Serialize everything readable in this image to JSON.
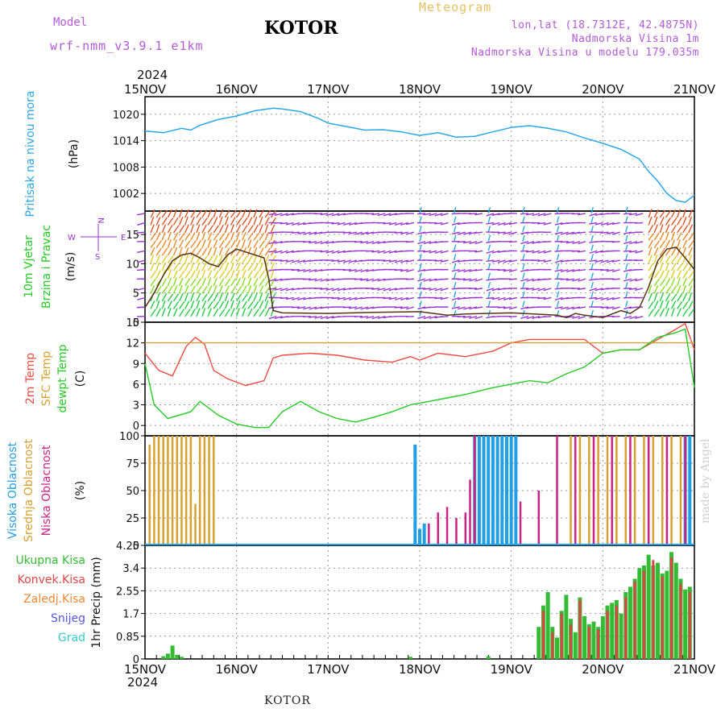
{
  "header": {
    "model_label": "Model",
    "model_value": "wrf-nmm_v3.9.1  e1km",
    "title": "KOTOR",
    "meteogram": "Meteogram",
    "lonlat": "lon,lat (18.7312E, 42.4875N)",
    "elevation": "Nadmorska Visina 1m",
    "model_elevation": "Nadmorska Visina u modelu 179.035m",
    "year_top": "2024",
    "year_bottom": "2024",
    "footer": "KOTOR",
    "made_by": "made by Angel"
  },
  "colors": {
    "pressure": "#2aa7e8",
    "temp2m": "#ee4b40",
    "sfctemp": "#d8a030",
    "dewpt": "#22cc22",
    "cloud_high": "#1f9fe8",
    "cloud_mid": "#d8a030",
    "cloud_low": "#cc2288",
    "rain_total": "#33bb33",
    "rain_conv": "#dd4444",
    "rain_ice": "#ee8833",
    "snow": "#5555dd",
    "hail": "#33cccc",
    "wind_purple": "#9a33d6"
  },
  "chart_data": [
    {
      "type": "line",
      "name": "pressure_panel",
      "ylabel_parts": [
        "Pritisak na nivou mora",
        "(hPa)"
      ],
      "x_ticks": [
        "15NOV",
        "16NOV",
        "17NOV",
        "18NOV",
        "19NOV",
        "20NOV",
        "21NOV"
      ],
      "ylim": [
        998,
        1024
      ],
      "y_ticks": [
        1002,
        1008,
        1014,
        1020
      ],
      "series": [
        {
          "x": [
            0,
            0.2,
            0.4,
            0.5,
            0.6,
            0.8,
            1.0,
            1.2,
            1.4,
            1.5,
            1.7,
            1.9,
            2.0,
            2.2,
            2.4,
            2.6,
            2.8,
            3.0,
            3.2,
            3.4,
            3.6,
            3.8,
            4.0,
            4.2,
            4.4,
            4.6,
            4.8,
            5.0,
            5.2,
            5.4,
            5.5,
            5.6,
            5.7,
            5.8,
            5.9,
            6.0
          ],
          "values": [
            1016.2,
            1015.8,
            1016.8,
            1016.4,
            1017.5,
            1018.8,
            1019.6,
            1020.8,
            1021.4,
            1021.2,
            1020.6,
            1019.0,
            1018.0,
            1017.2,
            1016.4,
            1016.5,
            1016.0,
            1015.2,
            1015.8,
            1014.8,
            1015.0,
            1016.0,
            1017.0,
            1017.4,
            1016.8,
            1016.0,
            1014.6,
            1013.4,
            1012.0,
            1009.8,
            1007.0,
            1004.8,
            1002.0,
            1000.4,
            1000.0,
            1001.6
          ]
        }
      ]
    },
    {
      "type": "line",
      "name": "wind_panel",
      "ylabel_parts": [
        "10m Vjetar",
        "Brzina i Pravac",
        "(m/s)"
      ],
      "compass": {
        "n": "N",
        "e": "E",
        "w": "W",
        "s": "S"
      },
      "ylim": [
        0,
        19
      ],
      "y_ticks": [
        0,
        5,
        10,
        15
      ],
      "series": [
        {
          "name": "speed",
          "x": [
            0,
            0.1,
            0.2,
            0.3,
            0.4,
            0.5,
            0.6,
            0.7,
            0.8,
            0.9,
            1.0,
            1.1,
            1.2,
            1.3,
            1.35,
            1.4,
            1.5,
            2.0,
            2.5,
            3.0,
            3.3,
            3.5,
            4.0,
            4.5,
            4.6,
            4.7,
            4.8,
            5.0,
            5.2,
            5.3,
            5.4,
            5.5,
            5.6,
            5.7,
            5.8,
            5.9,
            6.0
          ],
          "values": [
            2.5,
            5.0,
            8.0,
            10.5,
            11.5,
            11.8,
            11.0,
            10.0,
            9.5,
            11.5,
            12.5,
            12.0,
            11.5,
            11.0,
            7.5,
            2.0,
            1.6,
            1.5,
            1.7,
            1.8,
            1.2,
            1.4,
            1.6,
            1.2,
            0.8,
            1.5,
            1.2,
            0.8,
            2.0,
            1.5,
            2.5,
            6.0,
            10.5,
            12.5,
            12.8,
            11.0,
            9.0
          ]
        }
      ]
    },
    {
      "type": "line",
      "name": "temperature_panel",
      "ylabel_parts": [
        "2m Temp",
        "SFC Temp",
        "dewpt Temp",
        "(C)"
      ],
      "ylim": [
        -1.5,
        15
      ],
      "y_ticks": [
        0,
        3,
        6,
        9,
        12,
        15
      ],
      "series": [
        {
          "name": "2m Temp",
          "x": [
            0,
            0.15,
            0.3,
            0.45,
            0.55,
            0.65,
            0.75,
            0.9,
            1.1,
            1.3,
            1.4,
            1.5,
            1.8,
            2.1,
            2.4,
            2.7,
            2.9,
            3.0,
            3.2,
            3.5,
            3.8,
            4.0,
            4.2,
            4.5,
            4.8,
            5.0,
            5.2,
            5.4,
            5.6,
            5.8,
            5.9,
            6.0
          ],
          "values": [
            10.5,
            8.0,
            7.2,
            11.5,
            12.8,
            11.8,
            8.0,
            6.8,
            5.8,
            6.5,
            9.8,
            10.2,
            10.5,
            10.2,
            9.5,
            9.2,
            10.0,
            9.5,
            10.5,
            10.0,
            10.8,
            12.0,
            12.5,
            12.5,
            12.5,
            10.5,
            11.0,
            11.0,
            12.5,
            14.0,
            14.8,
            11.0
          ]
        },
        {
          "name": "SFC Temp",
          "x": [
            0,
            6.0
          ],
          "values": [
            12.0,
            12.0
          ]
        },
        {
          "name": "dewpt Temp",
          "x": [
            0,
            0.1,
            0.25,
            0.5,
            0.6,
            0.8,
            1.0,
            1.2,
            1.35,
            1.5,
            1.7,
            1.9,
            2.1,
            2.3,
            2.5,
            2.7,
            2.9,
            3.1,
            3.3,
            3.5,
            3.8,
            4.0,
            4.2,
            4.4,
            4.6,
            4.8,
            5.0,
            5.2,
            5.4,
            5.6,
            5.8,
            5.9,
            6.0
          ],
          "values": [
            9.0,
            3.0,
            1.0,
            2.0,
            3.5,
            1.5,
            0.2,
            -0.3,
            -0.3,
            2.0,
            3.5,
            2.0,
            1.0,
            0.5,
            1.2,
            2.0,
            3.0,
            3.5,
            4.0,
            4.5,
            5.5,
            6.0,
            6.5,
            6.2,
            7.5,
            8.5,
            10.5,
            11.0,
            11.0,
            12.8,
            13.5,
            14.0,
            5.5
          ]
        }
      ]
    },
    {
      "type": "bar",
      "name": "cloud_panel",
      "ylabel_parts": [
        "Visoka Oblacnost",
        "Srednja Oblacnost",
        "Niska Oblacnost",
        "(%)"
      ],
      "ylim": [
        0,
        100
      ],
      "y_ticks": [
        0,
        25,
        50,
        75,
        100
      ],
      "series": [
        {
          "name": "Srednja Oblacnost",
          "x": [
            0.05,
            0.1,
            0.15,
            0.2,
            0.25,
            0.3,
            0.35,
            0.4,
            0.45,
            0.5,
            0.55,
            0.6,
            0.65,
            0.7,
            0.75,
            4.65,
            4.75,
            4.85,
            4.95,
            5.05,
            5.15,
            5.25,
            5.35,
            5.45,
            5.55,
            5.65,
            5.75,
            5.85,
            5.95
          ],
          "values": [
            92,
            100,
            100,
            100,
            100,
            100,
            100,
            100,
            100,
            100,
            38,
            100,
            100,
            100,
            100,
            100,
            100,
            100,
            100,
            100,
            100,
            100,
            100,
            100,
            100,
            100,
            100,
            100,
            100
          ]
        },
        {
          "name": "Visoka Oblacnost",
          "x": [
            2.95,
            3.0,
            3.05,
            3.6,
            3.65,
            3.7,
            3.75,
            3.8,
            3.85,
            3.9,
            3.95,
            4.0,
            4.05,
            5.9,
            5.95
          ],
          "values": [
            92,
            15,
            20,
            100,
            100,
            100,
            100,
            100,
            100,
            100,
            100,
            100,
            100,
            100,
            100
          ]
        },
        {
          "name": "Niska Oblacnost",
          "x": [
            3.1,
            3.2,
            3.3,
            3.4,
            3.5,
            3.55,
            3.6,
            4.1,
            4.3,
            4.5,
            4.7,
            4.9,
            5.1,
            5.3,
            5.5,
            5.7,
            5.9
          ],
          "values": [
            20,
            30,
            35,
            25,
            30,
            60,
            100,
            40,
            50,
            100,
            100,
            100,
            100,
            100,
            100,
            100,
            100
          ]
        }
      ]
    },
    {
      "type": "bar",
      "name": "precip_panel",
      "ylabel": "1hr Precip (mm)",
      "legend": [
        "Ukupna Kisa",
        "Konvek.Kisa",
        "Zaledj.Kisa",
        "Snijeg",
        "Grad"
      ],
      "ylim": [
        0,
        4.25
      ],
      "y_ticks": [
        0,
        0.85,
        1.7,
        2.55,
        3.4,
        4.25
      ],
      "series": [
        {
          "name": "Ukupna Kisa",
          "x": [
            0.2,
            0.25,
            0.3,
            0.35,
            0.4,
            2.9,
            3.75,
            4.3,
            4.35,
            4.4,
            4.45,
            4.5,
            4.55,
            4.6,
            4.65,
            4.7,
            4.75,
            4.8,
            4.85,
            4.9,
            4.95,
            5.0,
            5.05,
            5.1,
            5.15,
            5.2,
            5.25,
            5.3,
            5.35,
            5.4,
            5.45,
            5.5,
            5.55,
            5.6,
            5.65,
            5.7,
            5.75,
            5.8,
            5.85,
            5.9,
            5.95
          ],
          "values": [
            0.1,
            0.2,
            0.5,
            0.15,
            0.08,
            0.08,
            0.1,
            1.2,
            2.0,
            2.5,
            1.2,
            0.8,
            1.8,
            2.4,
            1.5,
            1.0,
            2.3,
            1.6,
            1.3,
            1.4,
            1.2,
            1.6,
            2.0,
            2.1,
            2.2,
            1.7,
            2.5,
            2.7,
            3.0,
            3.4,
            3.5,
            3.9,
            3.5,
            3.6,
            3.2,
            3.3,
            4.0,
            3.6,
            3.0,
            2.6,
            2.7
          ]
        },
        {
          "name": "Konvek.Kisa",
          "x": [
            4.35,
            4.45,
            4.55,
            4.65,
            4.75,
            4.85,
            4.95,
            5.05,
            5.15,
            5.25,
            5.35,
            5.45,
            5.55,
            5.65,
            5.75,
            5.85,
            5.95
          ],
          "values": [
            1.8,
            1.0,
            1.7,
            1.3,
            2.2,
            1.2,
            1.1,
            1.8,
            2.0,
            2.3,
            2.9,
            3.3,
            3.7,
            3.1,
            3.8,
            2.8,
            2.5
          ]
        }
      ]
    }
  ]
}
